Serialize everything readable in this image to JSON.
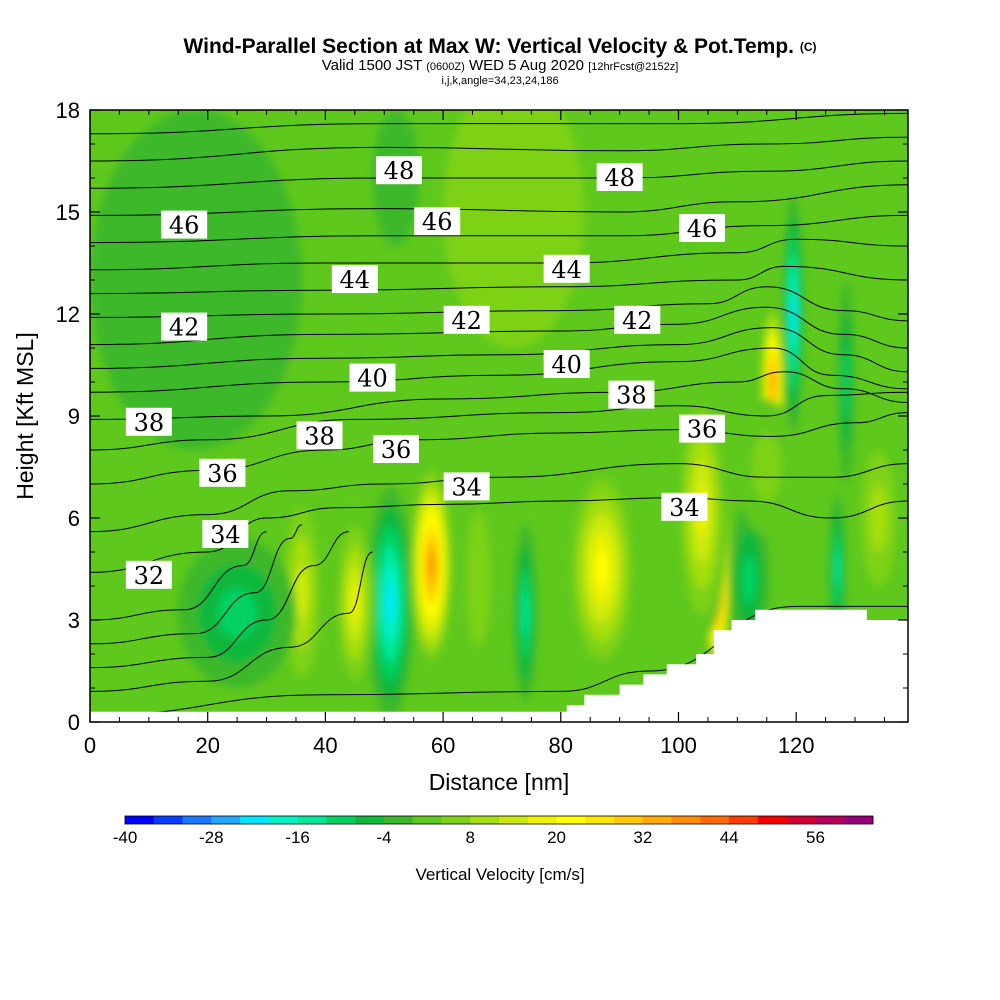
{
  "title": {
    "main": "Wind-Parallel Section at Max W: Vertical Velocity & Pot.Temp.",
    "main_suffix": "(C)",
    "valid_prefix": "Valid 1500 JST",
    "valid_small": "(0600Z)",
    "valid_date": "WED 5 Aug 2020",
    "valid_fcst": "[12hrFcst@2152z]",
    "indices": "i,j,k,angle=34,23,24,186"
  },
  "chart_data": {
    "type": "heatmap",
    "xlabel": "Distance [nm]",
    "ylabel": "Height [Kft MSL]",
    "xlim": [
      0,
      139
    ],
    "ylim": [
      0,
      18
    ],
    "x_ticks": [
      0,
      20,
      40,
      60,
      80,
      100,
      120
    ],
    "y_ticks": [
      0,
      3,
      6,
      9,
      12,
      15,
      18
    ],
    "x_tick_labels": [
      "0",
      "20",
      "40",
      "60",
      "80",
      "100",
      "120"
    ],
    "y_tick_labels": [
      "0",
      "3",
      "6",
      "9",
      "12",
      "15",
      "18"
    ],
    "background_w": 0,
    "w_cells": [
      {
        "x": 51,
        "y": 3.6,
        "rx": 2.5,
        "ry": 2.6,
        "w": -38
      },
      {
        "x": 51,
        "y": 3.5,
        "rx": 4,
        "ry": 3.4,
        "w": -22
      },
      {
        "x": 58,
        "y": 4.6,
        "rx": 3.8,
        "ry": 3.1,
        "w": 38
      },
      {
        "x": 45,
        "y": 3.5,
        "rx": 3.5,
        "ry": 2.8,
        "w": 18
      },
      {
        "x": 36,
        "y": 3.8,
        "rx": 3,
        "ry": 2.5,
        "w": 12
      },
      {
        "x": 25,
        "y": 3.2,
        "rx": 10,
        "ry": 2.2,
        "w": -10
      },
      {
        "x": 74,
        "y": 3.2,
        "rx": 2,
        "ry": 2.6,
        "w": -16
      },
      {
        "x": 87,
        "y": 4.5,
        "rx": 6,
        "ry": 3.2,
        "w": 22
      },
      {
        "x": 106.5,
        "y": 4.8,
        "rx": 2.4,
        "ry": 3.3,
        "w": 60
      },
      {
        "x": 104,
        "y": 6.2,
        "rx": 4.5,
        "ry": 3.8,
        "w": 18
      },
      {
        "x": 112,
        "y": 4.2,
        "rx": 3.5,
        "ry": 2.2,
        "w": -12
      },
      {
        "x": 116,
        "y": 10,
        "rx": 2,
        "ry": 2.2,
        "w": 36
      },
      {
        "x": 119.5,
        "y": 12,
        "rx": 1.8,
        "ry": 3.5,
        "w": -24
      },
      {
        "x": 128.5,
        "y": 10,
        "rx": 1.5,
        "ry": 3,
        "w": -12
      },
      {
        "x": 127,
        "y": 4.5,
        "rx": 1.5,
        "ry": 2.2,
        "w": -14
      },
      {
        "x": 134,
        "y": 6,
        "rx": 3,
        "ry": 2,
        "w": 8
      },
      {
        "x": 115,
        "y": 7.5,
        "rx": 5,
        "ry": 2,
        "w": 6
      },
      {
        "x": 66,
        "y": 4.2,
        "rx": 4,
        "ry": 4,
        "w": 6
      },
      {
        "x": 18,
        "y": 13,
        "rx": 18,
        "ry": 5,
        "w": -3
      },
      {
        "x": 72,
        "y": 15,
        "rx": 12,
        "ry": 4,
        "w": 4
      },
      {
        "x": 52,
        "y": 16,
        "rx": 4,
        "ry": 2,
        "w": -4
      },
      {
        "x": 42,
        "y": 13.5,
        "rx": 4,
        "ry": 4,
        "w": 3
      }
    ],
    "theta_levels": [
      {
        "value": 31.5,
        "pts": [
          [
            0,
            0.2
          ],
          [
            40,
            0.8
          ],
          [
            80,
            0.9
          ],
          [
            95,
            1.5
          ],
          [
            120,
            3.4
          ],
          [
            139,
            3.4
          ]
        ]
      },
      {
        "value": 32,
        "pts": [
          [
            0,
            0.9
          ],
          [
            20,
            1.2
          ],
          [
            34,
            2.2
          ],
          [
            44,
            3.2
          ],
          [
            48,
            5.0
          ]
        ]
      },
      {
        "value": 32.5,
        "pts": [
          [
            0,
            1.6
          ],
          [
            20,
            1.9
          ],
          [
            30,
            3.0
          ],
          [
            38,
            4.6
          ],
          [
            44,
            5.6
          ]
        ]
      },
      {
        "value": 33,
        "pts": [
          [
            0,
            2.3
          ],
          [
            18,
            2.6
          ],
          [
            28,
            3.8
          ],
          [
            34,
            5.4
          ],
          [
            36,
            5.8
          ]
        ]
      },
      {
        "value": 33.5,
        "pts": [
          [
            0,
            3.0
          ],
          [
            16,
            3.3
          ],
          [
            26,
            4.6
          ],
          [
            30,
            5.6
          ]
        ]
      },
      {
        "value": 34,
        "pts": [
          [
            0,
            4.4
          ],
          [
            20,
            5.0
          ],
          [
            30,
            6.0
          ],
          [
            42,
            6.3
          ],
          [
            60,
            6.4
          ],
          [
            80,
            6.5
          ],
          [
            100,
            6.6
          ],
          [
            112,
            6.5
          ],
          [
            126,
            6.0
          ],
          [
            139,
            6.5
          ]
        ]
      },
      {
        "value": 35,
        "pts": [
          [
            0,
            5.6
          ],
          [
            20,
            6.1
          ],
          [
            34,
            6.8
          ],
          [
            50,
            7.0
          ],
          [
            70,
            7.2
          ],
          [
            100,
            7.6
          ],
          [
            115,
            7.2
          ],
          [
            126,
            7.2
          ],
          [
            139,
            7.6
          ]
        ]
      },
      {
        "value": 36,
        "pts": [
          [
            0,
            7.0
          ],
          [
            20,
            7.4
          ],
          [
            40,
            8.0
          ],
          [
            55,
            8.3
          ],
          [
            80,
            8.5
          ],
          [
            100,
            8.6
          ],
          [
            116,
            8.4
          ],
          [
            130,
            8.8
          ],
          [
            139,
            9.1
          ]
        ]
      },
      {
        "value": 37,
        "pts": [
          [
            0,
            8.0
          ],
          [
            20,
            8.3
          ],
          [
            45,
            8.9
          ],
          [
            80,
            9.1
          ],
          [
            100,
            9.3
          ],
          [
            115,
            9.0
          ],
          [
            125,
            9.6
          ],
          [
            139,
            9.7
          ]
        ]
      },
      {
        "value": 38,
        "pts": [
          [
            0,
            8.9
          ],
          [
            30,
            9.0
          ],
          [
            60,
            9.5
          ],
          [
            90,
            9.7
          ],
          [
            110,
            10.0
          ],
          [
            118,
            10.3
          ],
          [
            128,
            9.8
          ],
          [
            139,
            9.4
          ]
        ]
      },
      {
        "value": 39,
        "pts": [
          [
            0,
            9.7
          ],
          [
            40,
            10.0
          ],
          [
            70,
            10.2
          ],
          [
            100,
            10.6
          ],
          [
            116,
            11.0
          ],
          [
            126,
            10.2
          ],
          [
            139,
            9.8
          ]
        ]
      },
      {
        "value": 40,
        "pts": [
          [
            0,
            10.4
          ],
          [
            40,
            10.7
          ],
          [
            70,
            10.8
          ],
          [
            100,
            11.1
          ],
          [
            116,
            11.6
          ],
          [
            128,
            10.8
          ],
          [
            139,
            10.3
          ]
        ]
      },
      {
        "value": 41,
        "pts": [
          [
            0,
            11.1
          ],
          [
            40,
            11.4
          ],
          [
            80,
            11.5
          ],
          [
            100,
            11.7
          ],
          [
            115,
            12.2
          ],
          [
            128,
            11.4
          ],
          [
            139,
            11.0
          ]
        ]
      },
      {
        "value": 42,
        "pts": [
          [
            0,
            11.9
          ],
          [
            40,
            12.0
          ],
          [
            80,
            12.1
          ],
          [
            105,
            12.3
          ],
          [
            115,
            12.8
          ],
          [
            128,
            12.1
          ],
          [
            139,
            11.8
          ]
        ]
      },
      {
        "value": 43,
        "pts": [
          [
            0,
            12.6
          ],
          [
            40,
            12.7
          ],
          [
            80,
            12.8
          ],
          [
            110,
            13.0
          ],
          [
            118,
            13.4
          ],
          [
            139,
            13.0
          ]
        ]
      },
      {
        "value": 44,
        "pts": [
          [
            0,
            13.3
          ],
          [
            40,
            13.5
          ],
          [
            80,
            13.5
          ],
          [
            110,
            13.8
          ],
          [
            120,
            14.2
          ],
          [
            139,
            14.0
          ]
        ]
      },
      {
        "value": 45,
        "pts": [
          [
            0,
            14.1
          ],
          [
            50,
            14.3
          ],
          [
            90,
            14.3
          ],
          [
            115,
            14.6
          ],
          [
            139,
            14.9
          ]
        ]
      },
      {
        "value": 46,
        "pts": [
          [
            0,
            14.9
          ],
          [
            50,
            15.1
          ],
          [
            90,
            15.0
          ],
          [
            110,
            15.3
          ],
          [
            139,
            15.8
          ]
        ]
      },
      {
        "value": 47,
        "pts": [
          [
            0,
            15.7
          ],
          [
            50,
            16.0
          ],
          [
            90,
            16.0
          ],
          [
            115,
            16.2
          ],
          [
            139,
            16.5
          ]
        ]
      },
      {
        "value": 48,
        "pts": [
          [
            0,
            16.5
          ],
          [
            50,
            16.9
          ],
          [
            90,
            16.8
          ],
          [
            115,
            17.0
          ],
          [
            139,
            17.2
          ]
        ]
      },
      {
        "value": 49,
        "pts": [
          [
            0,
            17.3
          ],
          [
            50,
            17.6
          ],
          [
            100,
            17.6
          ],
          [
            139,
            17.9
          ]
        ]
      }
    ],
    "contour_labels": [
      {
        "text": "48",
        "x": 52.5,
        "y": 16.2
      },
      {
        "text": "48",
        "x": 90,
        "y": 16.0
      },
      {
        "text": "46",
        "x": 16,
        "y": 14.6
      },
      {
        "text": "46",
        "x": 59,
        "y": 14.7
      },
      {
        "text": "46",
        "x": 104,
        "y": 14.5
      },
      {
        "text": "44",
        "x": 45,
        "y": 13.0
      },
      {
        "text": "44",
        "x": 81,
        "y": 13.3
      },
      {
        "text": "42",
        "x": 16,
        "y": 11.6
      },
      {
        "text": "42",
        "x": 64,
        "y": 11.8
      },
      {
        "text": "42",
        "x": 93,
        "y": 11.8
      },
      {
        "text": "40",
        "x": 48,
        "y": 10.1
      },
      {
        "text": "40",
        "x": 81,
        "y": 10.5
      },
      {
        "text": "38",
        "x": 10,
        "y": 8.8
      },
      {
        "text": "38",
        "x": 39,
        "y": 8.4
      },
      {
        "text": "38",
        "x": 92,
        "y": 9.6
      },
      {
        "text": "36",
        "x": 22.5,
        "y": 7.3
      },
      {
        "text": "36",
        "x": 52,
        "y": 8.0
      },
      {
        "text": "36",
        "x": 104,
        "y": 8.6
      },
      {
        "text": "34",
        "x": 23,
        "y": 5.5
      },
      {
        "text": "34",
        "x": 64,
        "y": 6.9
      },
      {
        "text": "34",
        "x": 101,
        "y": 6.3
      },
      {
        "text": "32",
        "x": 10,
        "y": 4.3
      }
    ],
    "terrain": [
      [
        0,
        0.3
      ],
      [
        20,
        0.3
      ],
      [
        40,
        0.3
      ],
      [
        60,
        0.3
      ],
      [
        80,
        0.3
      ],
      [
        81,
        0.3
      ],
      [
        81,
        0.5
      ],
      [
        84,
        0.5
      ],
      [
        84,
        0.8
      ],
      [
        90,
        0.8
      ],
      [
        90,
        1.1
      ],
      [
        94,
        1.1
      ],
      [
        94,
        1.4
      ],
      [
        98,
        1.4
      ],
      [
        98,
        1.7
      ],
      [
        103,
        1.7
      ],
      [
        103,
        2.0
      ],
      [
        106,
        2.0
      ],
      [
        106,
        2.7
      ],
      [
        109,
        2.7
      ],
      [
        109,
        3.0
      ],
      [
        113,
        3.0
      ],
      [
        113,
        3.3
      ],
      [
        132,
        3.3
      ],
      [
        132,
        3.0
      ],
      [
        139,
        3.0
      ]
    ],
    "colorbar": {
      "title": "Vertical Velocity [cm/s]",
      "tick_labels": [
        "-40",
        "-28",
        "-16",
        "-4",
        "8",
        "20",
        "32",
        "44",
        "56"
      ],
      "tick_values": [
        -40,
        -28,
        -16,
        -4,
        8,
        20,
        32,
        44,
        56
      ],
      "vmin": -40,
      "vmax": 64,
      "step": 4,
      "colors": [
        "#0000ff",
        "#0a3cff",
        "#1a78ff",
        "#22a8ff",
        "#00e6ff",
        "#00f0c8",
        "#00e89a",
        "#00d262",
        "#10b83c",
        "#3cb82a",
        "#5ec81c",
        "#7ed214",
        "#a6de10",
        "#ccea08",
        "#ecf200",
        "#ffff00",
        "#ffe600",
        "#ffc800",
        "#ffaa00",
        "#ff8c00",
        "#ff6a00",
        "#ff3c00",
        "#f40000",
        "#d20032",
        "#b4005a",
        "#960078"
      ]
    }
  }
}
